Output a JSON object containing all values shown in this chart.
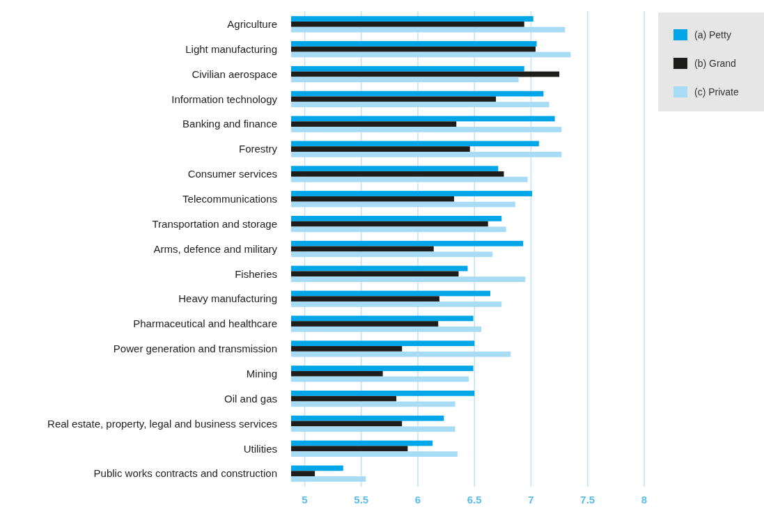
{
  "chart_data": {
    "type": "bar",
    "orientation": "horizontal",
    "categories": [
      "Agriculture",
      "Light manufacturing",
      "Civilian aerospace",
      "Information technology",
      "Banking and finance",
      "Forestry",
      "Consumer services",
      "Telecommunications",
      "Transportation and storage",
      "Arms, defence and military",
      "Fisheries",
      "Heavy manufacturing",
      "Pharmaceutical and healthcare",
      "Power generation and transmission",
      "Mining",
      "Oil and gas",
      "Real estate, property, legal and business services",
      "Utilities",
      "Public works contracts and construction"
    ],
    "series": [
      {
        "name": "(a) Petty",
        "color": "#00a6e8",
        "values": [
          7.02,
          7.05,
          6.94,
          7.11,
          7.21,
          7.07,
          6.71,
          7.01,
          6.74,
          6.93,
          6.44,
          6.64,
          6.49,
          6.5,
          6.49,
          6.5,
          6.23,
          6.13,
          5.34
        ]
      },
      {
        "name": "(b) Grand",
        "color": "#1d1d1b",
        "values": [
          6.94,
          7.04,
          7.25,
          6.69,
          6.34,
          6.46,
          6.76,
          6.32,
          6.62,
          6.14,
          6.36,
          6.19,
          6.18,
          5.86,
          5.69,
          5.81,
          5.86,
          5.91,
          5.09
        ]
      },
      {
        "name": "(c) Private",
        "color": "#a8dcf5",
        "values": [
          7.3,
          7.35,
          6.89,
          7.16,
          7.27,
          7.27,
          6.97,
          6.86,
          6.78,
          6.66,
          6.95,
          6.74,
          6.56,
          6.82,
          6.45,
          6.33,
          6.33,
          6.35,
          5.54
        ]
      }
    ],
    "xlim": [
      4.88,
      8
    ],
    "xticks": [
      5,
      5.5,
      6,
      6.5,
      7,
      7.5,
      8
    ],
    "grid": "x",
    "legend": "top right"
  }
}
